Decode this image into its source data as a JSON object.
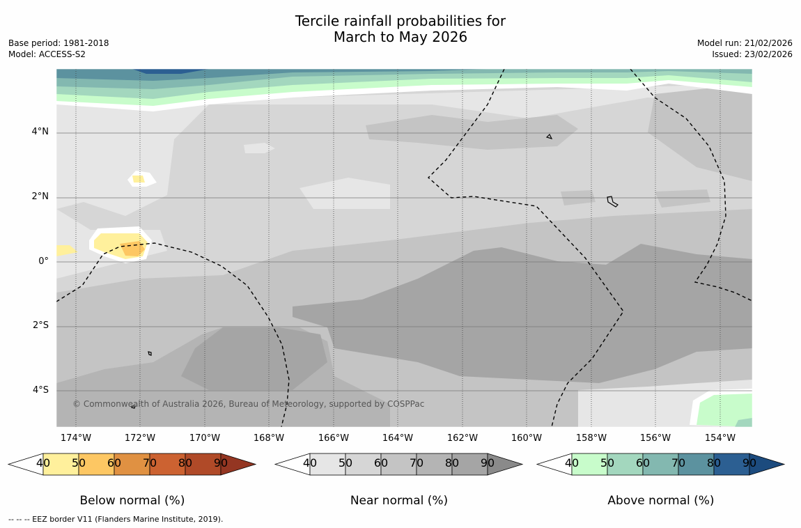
{
  "title_line1": "Tercile rainfall probabilities for",
  "title_line2": "March to May 2026",
  "base_period": "Base period: 1981-2018",
  "model": "Model: ACCESS-S2",
  "model_run": "Model run: 21/02/2026",
  "issued": "Issued: 23/02/2026",
  "copyright": "© Commonwealth of Australia 2026, Bureau of Meteorology, supported by COSPPac",
  "lat_labels": [
    "4°N",
    "2°N",
    "0°",
    "2°S",
    "4°S"
  ],
  "lon_labels": [
    "174°W",
    "172°W",
    "170°W",
    "168°W",
    "166°W",
    "164°W",
    "162°W",
    "160°W",
    "158°W",
    "156°W",
    "154°W"
  ],
  "colorbars": [
    {
      "label": "Below normal (%)",
      "ticks": [
        "40",
        "50",
        "60",
        "70",
        "80",
        "90"
      ],
      "colors": [
        "#fff09c",
        "#fdc763",
        "#e09142",
        "#cc6231",
        "#b04a28",
        "#943622"
      ]
    },
    {
      "label": "Near normal (%)",
      "ticks": [
        "40",
        "50",
        "60",
        "70",
        "80",
        "90"
      ],
      "colors": [
        "#e6e6e6",
        "#d6d6d6",
        "#c4c4c4",
        "#b4b4b4",
        "#a5a5a5",
        "#8a8a8a"
      ]
    },
    {
      "label": "Above normal (%)",
      "ticks": [
        "40",
        "50",
        "60",
        "70",
        "80",
        "90"
      ],
      "colors": [
        "#c8fccb",
        "#a3d7be",
        "#83b8b0",
        "#5c929f",
        "#2c5f92",
        "#1c4b7e"
      ]
    }
  ],
  "footnote": "--  --  -- EEZ border V11 (Flanders Marine Institute, 2019)."
}
